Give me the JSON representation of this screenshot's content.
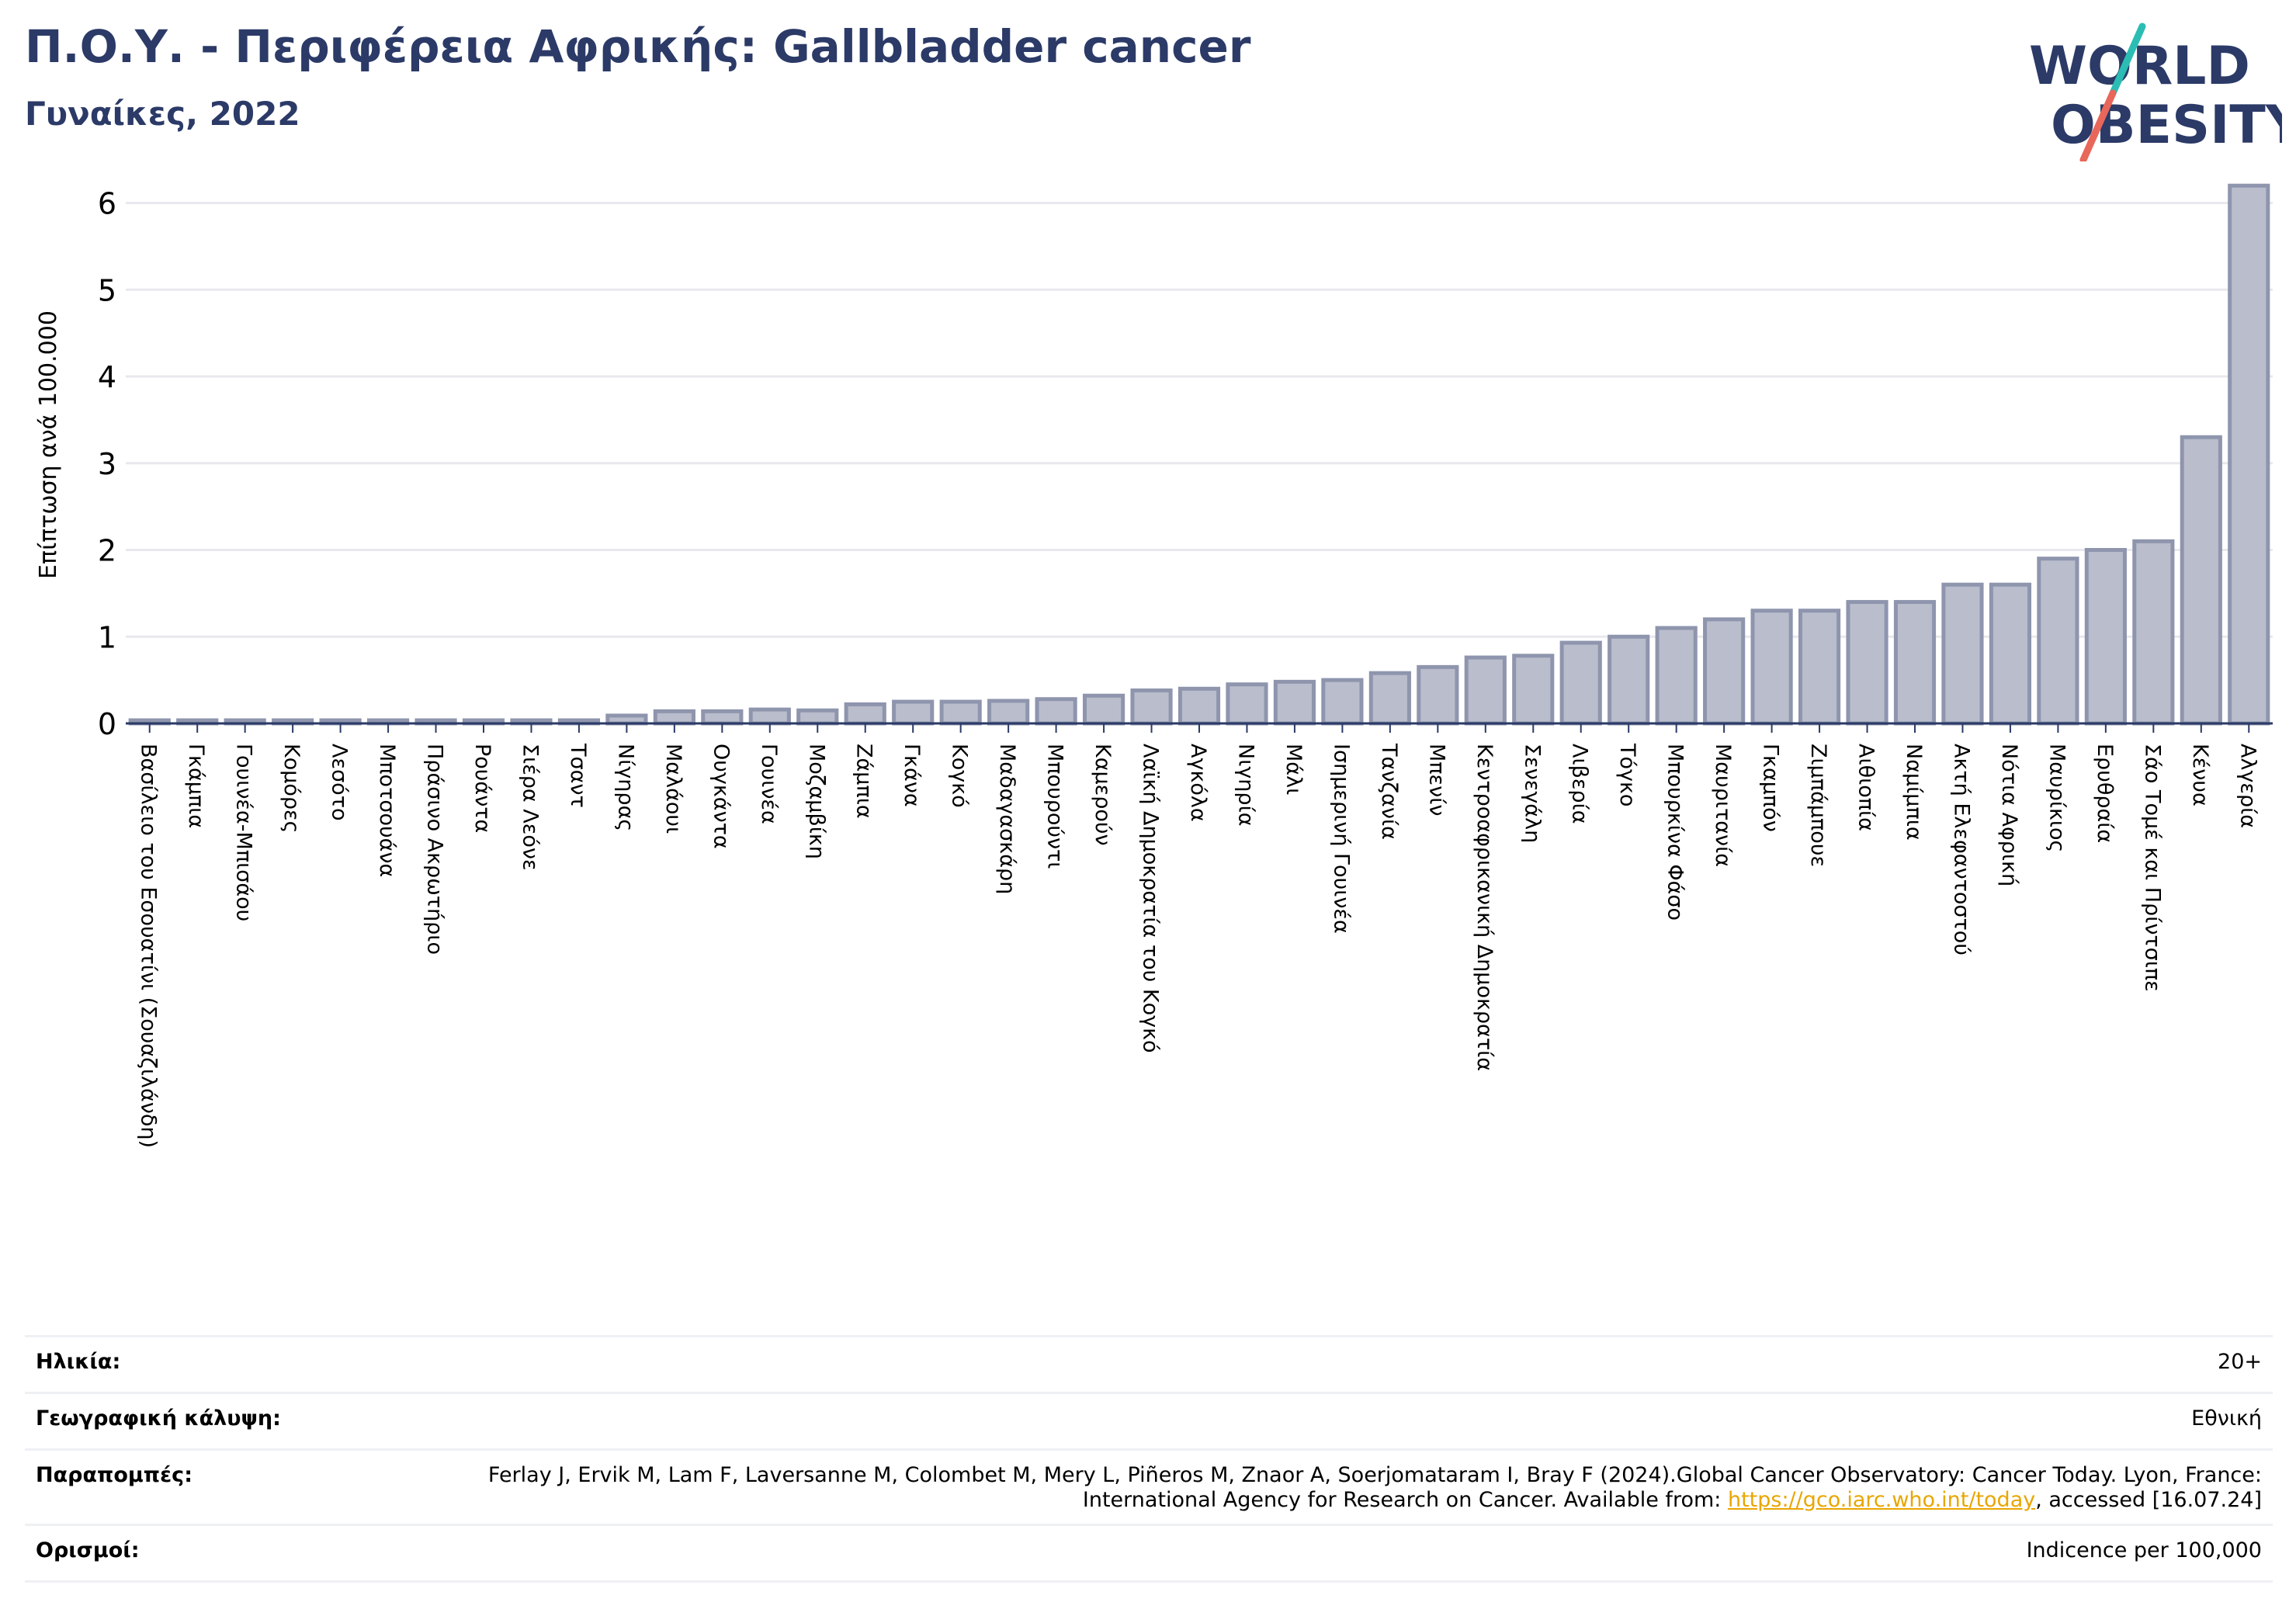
{
  "header": {
    "title": "Π.Ο.Υ. - Περιφέρεια Αφρικής: Gallbladder cancer",
    "subtitle": "Γυναίκες, 2022"
  },
  "logo": {
    "line1": "WORLD",
    "line2": "OBESITY"
  },
  "colors": {
    "bar_fill": "#b9bdcc",
    "bar_stroke": "#8e95ad",
    "title": "#2b3a67",
    "logo_teal": "#2bbdb4",
    "logo_red": "#e8675a",
    "grid": "#e8e8ee",
    "link": "#e8a600"
  },
  "chart_data": {
    "type": "bar",
    "title": "Π.Ο.Υ. - Περιφέρεια Αφρικής: Gallbladder cancer",
    "subtitle": "Γυναίκες, 2022",
    "xlabel": "",
    "ylabel": "Επίπτωση ανά 100.000",
    "ylim": [
      0,
      6.3
    ],
    "yticks": [
      "0",
      "1",
      "2",
      "3",
      "4",
      "5",
      "6"
    ],
    "grid": true,
    "categories": [
      "Βασίλειο του Εσουατίνι (Σουαζιλάνδη)",
      "Γκάμπια",
      "Γουινέα-Μπισάου",
      "Κομόρες",
      "Λεσότο",
      "Μποτσουάνα",
      "Πράσινο Ακρωτήριο",
      "Ρουάντα",
      "Σιέρα Λεόνε",
      "Τσαντ",
      "Νίγηρας",
      "Μαλάουι",
      "Ουγκάντα",
      "Γουινέα",
      "Μοζαμβίκη",
      "Ζάμπια",
      "Γκάνα",
      "Κογκό",
      "Μαδαγασκάρη",
      "Μπουρούντι",
      "Καμερούν",
      "Λαϊκή Δημοκρατία του Κογκό",
      "Αγκόλα",
      "Νιγηρία",
      "Μάλι",
      "Ισημερινή Γουινέα",
      "Τανζανία",
      "Μπενίν",
      "Κεντροαφρικανική Δημοκρατία",
      "Σενεγάλη",
      "Λιβερία",
      "Τόγκο",
      "Μπουρκίνα Φάσο",
      "Μαυριτανία",
      "Γκαμπόν",
      "Ζιμπάμπουε",
      "Αιθιοπία",
      "Ναμίμπια",
      "Ακτή Ελεφαντοστού",
      "Νότια Αφρική",
      "Μαυρίκιος",
      "Ερυθραία",
      "Σάο Τομέ και Πρίντσιπε",
      "Κένυα",
      "Αλγερία"
    ],
    "values": [
      0.02,
      0.02,
      0.02,
      0.02,
      0.02,
      0.02,
      0.02,
      0.02,
      0.02,
      0.02,
      0.09,
      0.14,
      0.14,
      0.16,
      0.15,
      0.22,
      0.25,
      0.25,
      0.26,
      0.28,
      0.32,
      0.38,
      0.4,
      0.45,
      0.48,
      0.5,
      0.58,
      0.65,
      0.76,
      0.78,
      0.93,
      1.0,
      1.1,
      1.2,
      1.3,
      1.3,
      1.4,
      1.4,
      1.6,
      1.6,
      1.9,
      2.0,
      2.1,
      3.3,
      6.2
    ]
  },
  "info": {
    "age_label": "Ηλικία:",
    "age_value": "20+",
    "coverage_label": "Γεωγραφική κάλυψη:",
    "coverage_value": "Εθνική",
    "references_label": "Παραπομπές:",
    "references_text_1": "Ferlay J, Ervik M, Lam F, Laversanne M, Colombet M, Mery L, Piñeros M, Znaor A, Soerjomataram I, Bray F (2024).Global Cancer Observatory: Cancer Today. Lyon, France: International Agency for Research on Cancer. Available from: ",
    "references_link": "https://gco.iarc.who.int/today",
    "references_text_2": ", accessed [16.07.24]",
    "definitions_label": "Ορισμοί:",
    "definitions_value": "Indicence per 100,000"
  }
}
